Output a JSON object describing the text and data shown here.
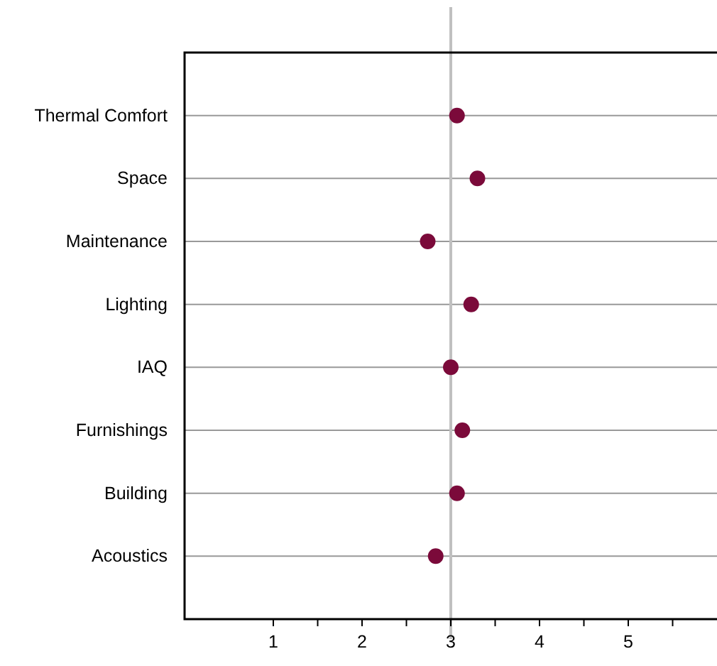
{
  "chart_data": {
    "type": "scatter",
    "categories": [
      "Thermal Comfort",
      "Space",
      "Maintenance",
      "Lighting",
      "IAQ",
      "Furnishings",
      "Building",
      "Acoustics"
    ],
    "orientation": "horizontal",
    "values": [
      3.07,
      3.3,
      2.74,
      3.23,
      3.0,
      3.13,
      3.07,
      2.83
    ],
    "color": "#7b0a3a",
    "marker": "circle",
    "xlim": [
      0,
      6
    ],
    "xticks": [
      1,
      {
        "value": 1.5,
        "label": null
      },
      2,
      {
        "value": 2.5,
        "label": null
      },
      3,
      {
        "value": 3.5,
        "label": null
      },
      4,
      {
        "value": 4.5,
        "label": null
      },
      5,
      {
        "value": 5.5,
        "label": null
      }
    ],
    "grid": "y",
    "ref_lines": [
      {
        "axis": "x",
        "value": 3,
        "label": null,
        "color": "#c0c0c0"
      }
    ]
  }
}
